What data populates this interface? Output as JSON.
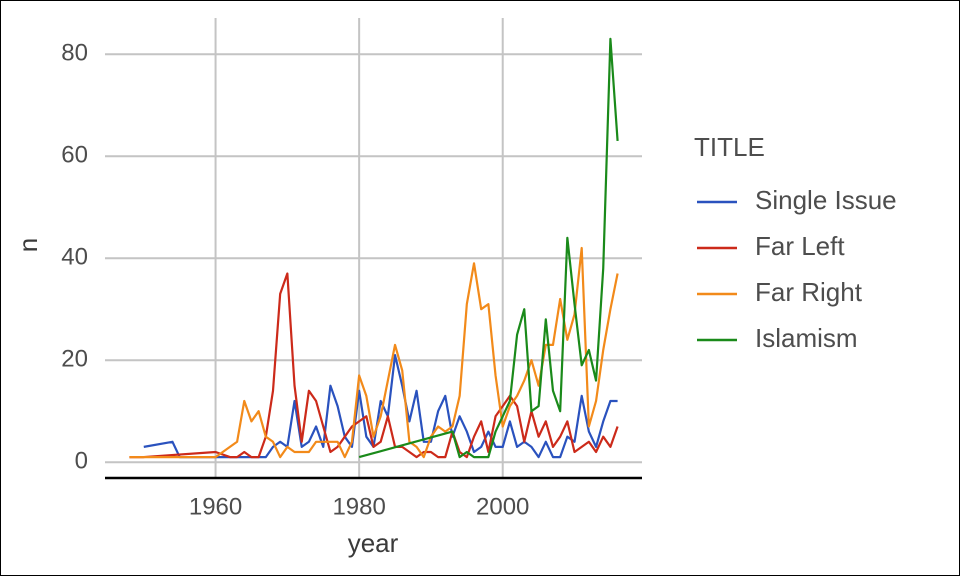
{
  "chart_data": {
    "type": "line",
    "x_label": "year",
    "y_label": "n",
    "legend_title": "TITLE",
    "xlim": [
      1944.6,
      2019.4
    ],
    "xticks": [
      1960,
      1980,
      2000
    ],
    "ylim": [
      -3.1,
      87.1
    ],
    "yticks": [
      0,
      20,
      40,
      60,
      80
    ],
    "grid": true,
    "legend": "right",
    "series": [
      {
        "name": "Single Issue",
        "color": "#2a52be",
        "x": [
          1950,
          1954,
          1955,
          1960,
          1965,
          1967,
          1968,
          1969,
          1970,
          1971,
          1972,
          1973,
          1974,
          1975,
          1976,
          1977,
          1978,
          1979,
          1980,
          1981,
          1982,
          1983,
          1984,
          1985,
          1986,
          1987,
          1988,
          1989,
          1990,
          1991,
          1992,
          1993,
          1994,
          1995,
          1996,
          1997,
          1998,
          1999,
          2000,
          2001,
          2002,
          2003,
          2004,
          2005,
          2006,
          2007,
          2008,
          2009,
          2010,
          2011,
          2012,
          2013,
          2014,
          2015,
          2016
        ],
        "values": [
          3,
          4,
          1,
          1,
          1,
          1,
          3,
          4,
          3,
          12,
          3,
          4,
          7,
          3,
          15,
          11,
          5,
          3,
          14,
          5,
          3,
          12,
          9,
          21,
          15,
          8,
          14,
          4,
          4,
          10,
          13,
          5,
          9,
          6,
          2,
          3,
          6,
          3,
          3,
          8,
          3,
          4,
          3,
          1,
          4,
          1,
          1,
          5,
          4,
          13,
          6,
          3,
          8,
          12,
          12
        ]
      },
      {
        "name": "Far Left",
        "color": "#cc2a1a",
        "x": [
          1948,
          1950,
          1960,
          1962,
          1963,
          1964,
          1965,
          1966,
          1967,
          1968,
          1969,
          1970,
          1971,
          1972,
          1973,
          1974,
          1975,
          1976,
          1977,
          1978,
          1979,
          1980,
          1981,
          1982,
          1983,
          1984,
          1985,
          1986,
          1987,
          1988,
          1989,
          1990,
          1991,
          1992,
          1993,
          1994,
          1995,
          1996,
          1997,
          1998,
          1999,
          2000,
          2001,
          2002,
          2003,
          2004,
          2005,
          2006,
          2007,
          2008,
          2009,
          2010,
          2011,
          2012,
          2013,
          2014,
          2015,
          2016
        ],
        "values": [
          1,
          1,
          2,
          1,
          1,
          2,
          1,
          1,
          5,
          14,
          33,
          37,
          15,
          4,
          14,
          12,
          7,
          2,
          3,
          5,
          7,
          8,
          9,
          3,
          4,
          9,
          3,
          3,
          2,
          1,
          2,
          2,
          1,
          1,
          6,
          2,
          1,
          5,
          8,
          2,
          9,
          11,
          13,
          11,
          4,
          10,
          5,
          8,
          3,
          5,
          8,
          2,
          3,
          4,
          2,
          5,
          3,
          7
        ]
      },
      {
        "name": "Far Right",
        "color": "#f28a1a",
        "x": [
          1948,
          1960,
          1962,
          1963,
          1964,
          1965,
          1966,
          1967,
          1968,
          1969,
          1970,
          1971,
          1972,
          1973,
          1974,
          1975,
          1976,
          1977,
          1978,
          1979,
          1980,
          1981,
          1982,
          1983,
          1984,
          1985,
          1986,
          1987,
          1988,
          1989,
          1990,
          1991,
          1992,
          1993,
          1994,
          1995,
          1996,
          1997,
          1998,
          1999,
          2000,
          2001,
          2002,
          2003,
          2004,
          2005,
          2006,
          2007,
          2008,
          2009,
          2010,
          2011,
          2012,
          2013,
          2014,
          2015,
          2016
        ],
        "values": [
          1,
          1,
          3,
          4,
          12,
          8,
          10,
          5,
          4,
          1,
          3,
          2,
          2,
          2,
          4,
          4,
          4,
          4,
          1,
          4,
          17,
          13,
          5,
          9,
          16,
          23,
          18,
          4,
          3,
          1,
          5,
          7,
          6,
          7,
          13,
          31,
          39,
          30,
          31,
          17,
          7,
          11,
          13,
          16,
          20,
          15,
          23,
          23,
          32,
          24,
          29,
          42,
          7,
          12,
          22,
          30,
          37
        ]
      },
      {
        "name": "Islamism",
        "color": "#1a8a1a",
        "x": [
          1980,
          1993,
          1994,
          1995,
          1996,
          1997,
          1998,
          1999,
          2000,
          2001,
          2002,
          2003,
          2004,
          2005,
          2006,
          2007,
          2008,
          2009,
          2010,
          2011,
          2012,
          2013,
          2014,
          2015,
          2016
        ],
        "values": [
          1,
          6,
          1,
          2,
          1,
          1,
          1,
          6,
          9,
          12,
          25,
          30,
          10,
          11,
          28,
          14,
          10,
          44,
          31,
          19,
          22,
          16,
          38,
          83,
          63
        ]
      }
    ]
  }
}
